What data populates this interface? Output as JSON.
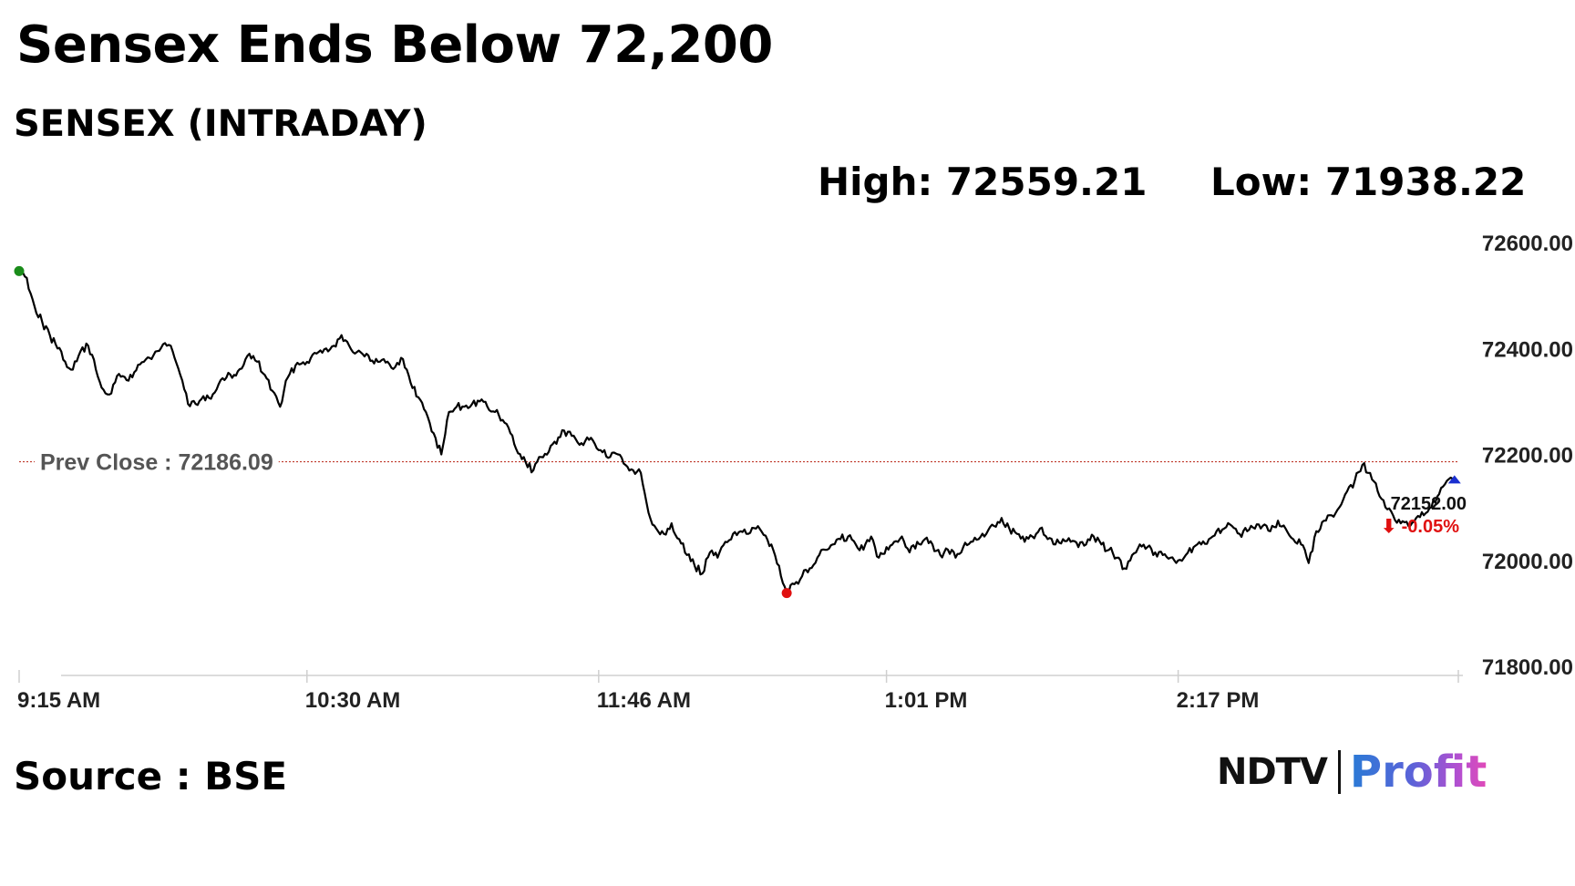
{
  "headline": "Sensex Ends Below 72,200",
  "stats": {
    "high": "High: 72559.21",
    "low": "Low: 71938.22"
  },
  "source": "Source : BSE",
  "logo": {
    "left_text": "NDTV",
    "right_text": "Profit"
  },
  "colors": {
    "line": "#000000",
    "prev_close_line": "#c0392b",
    "open_marker": "#1a8c1a",
    "low_marker": "#e01010",
    "last_marker": "#1a2fd0",
    "change_negative": "#e01010"
  },
  "chart_data": {
    "type": "line",
    "title": "SENSEX (INTRADAY)",
    "x_range": [
      "9:15 AM",
      "3:30 PM"
    ],
    "ylim": [
      71800,
      72600
    ],
    "grid": false,
    "y_ticks": [
      {
        "value": 72600,
        "label": "72600.00"
      },
      {
        "value": 72400,
        "label": "72400.00"
      },
      {
        "value": 72200,
        "label": "72200.00"
      },
      {
        "value": 72000,
        "label": "72000.00"
      },
      {
        "value": 71800,
        "label": "71800.00"
      }
    ],
    "x_ticks": [
      {
        "time": "9:15",
        "label": "9:15 AM"
      },
      {
        "time": "10:30",
        "label": "10:30 AM"
      },
      {
        "time": "11:46",
        "label": "11:46 AM"
      },
      {
        "time": "13:01",
        "label": "1:01 PM"
      },
      {
        "time": "14:17",
        "label": "2:17 PM"
      }
    ],
    "prev_close": {
      "value": 72186.09,
      "label": "Prev Close : 72186.09"
    },
    "high": 72559.21,
    "low": 71938.22,
    "last": {
      "value": 72152.0,
      "label": "72152.00",
      "change_label": "⬇ -0.05%"
    },
    "series": [
      {
        "points": [
          [
            "9:15",
            72546
          ],
          [
            "9:17",
            72533
          ],
          [
            "9:19",
            72480
          ],
          [
            "9:21",
            72450
          ],
          [
            "9:23",
            72425
          ],
          [
            "9:25",
            72400
          ],
          [
            "9:27",
            72375
          ],
          [
            "9:29",
            72360
          ],
          [
            "9:31",
            72395
          ],
          [
            "9:33",
            72405
          ],
          [
            "9:35",
            72360
          ],
          [
            "9:37",
            72322
          ],
          [
            "9:39",
            72315
          ],
          [
            "9:41",
            72352
          ],
          [
            "9:43",
            72340
          ],
          [
            "9:45",
            72355
          ],
          [
            "9:47",
            72374
          ],
          [
            "9:49",
            72382
          ],
          [
            "9:51",
            72395
          ],
          [
            "9:53",
            72410
          ],
          [
            "9:55",
            72395
          ],
          [
            "9:57",
            72350
          ],
          [
            "9:59",
            72295
          ],
          [
            "10:01",
            72295
          ],
          [
            "10:03",
            72310
          ],
          [
            "10:05",
            72305
          ],
          [
            "10:07",
            72333
          ],
          [
            "10:09",
            72345
          ],
          [
            "10:11",
            72350
          ],
          [
            "10:13",
            72362
          ],
          [
            "10:15",
            72390
          ],
          [
            "10:17",
            72375
          ],
          [
            "10:19",
            72350
          ],
          [
            "10:21",
            72320
          ],
          [
            "10:23",
            72290
          ],
          [
            "10:25",
            72345
          ],
          [
            "10:27",
            72368
          ],
          [
            "10:29",
            72374
          ],
          [
            "10:31",
            72382
          ],
          [
            "10:33",
            72393
          ],
          [
            "10:35",
            72400
          ],
          [
            "10:37",
            72405
          ],
          [
            "10:39",
            72425
          ],
          [
            "10:41",
            72405
          ],
          [
            "10:43",
            72393
          ],
          [
            "10:45",
            72385
          ],
          [
            "10:47",
            72377
          ],
          [
            "10:49",
            72375
          ],
          [
            "10:51",
            72375
          ],
          [
            "10:53",
            72365
          ],
          [
            "10:55",
            72380
          ],
          [
            "10:57",
            72335
          ],
          [
            "10:59",
            72308
          ],
          [
            "11:01",
            72280
          ],
          [
            "11:03",
            72240
          ],
          [
            "11:05",
            72200
          ],
          [
            "11:07",
            72280
          ],
          [
            "11:09",
            72290
          ],
          [
            "11:11",
            72290
          ],
          [
            "11:13",
            72295
          ],
          [
            "11:15",
            72300
          ],
          [
            "11:17",
            72290
          ],
          [
            "11:19",
            72280
          ],
          [
            "11:21",
            72265
          ],
          [
            "11:23",
            72240
          ],
          [
            "11:25",
            72202
          ],
          [
            "11:27",
            72185
          ],
          [
            "11:29",
            72170
          ],
          [
            "11:31",
            72195
          ],
          [
            "11:33",
            72205
          ],
          [
            "11:35",
            72220
          ],
          [
            "11:37",
            72245
          ],
          [
            "11:39",
            72235
          ],
          [
            "11:41",
            72218
          ],
          [
            "11:43",
            72232
          ],
          [
            "11:45",
            72220
          ],
          [
            "11:47",
            72204
          ],
          [
            "11:49",
            72195
          ],
          [
            "11:51",
            72200
          ],
          [
            "11:53",
            72180
          ],
          [
            "11:55",
            72170
          ],
          [
            "11:57",
            72165
          ],
          [
            "11:59",
            72090
          ],
          [
            "12:01",
            72060
          ],
          [
            "12:03",
            72050
          ],
          [
            "12:05",
            72070
          ],
          [
            "12:07",
            72040
          ],
          [
            "12:09",
            72010
          ],
          [
            "12:11",
            71990
          ],
          [
            "12:13",
            71975
          ],
          [
            "12:15",
            72015
          ],
          [
            "12:17",
            72005
          ],
          [
            "12:19",
            72035
          ],
          [
            "12:21",
            72050
          ],
          [
            "12:23",
            72055
          ],
          [
            "12:25",
            72050
          ],
          [
            "12:27",
            72060
          ],
          [
            "12:29",
            72048
          ],
          [
            "12:31",
            72030
          ],
          [
            "12:33",
            71990
          ],
          [
            "12:35",
            71938
          ],
          [
            "12:37",
            71955
          ],
          [
            "12:39",
            71970
          ],
          [
            "12:41",
            71985
          ],
          [
            "12:43",
            72005
          ],
          [
            "12:45",
            72020
          ],
          [
            "12:47",
            72030
          ],
          [
            "12:49",
            72040
          ],
          [
            "12:51",
            72045
          ],
          [
            "12:53",
            72030
          ],
          [
            "12:55",
            72020
          ],
          [
            "12:57",
            72045
          ],
          [
            "12:59",
            72005
          ],
          [
            "13:01",
            72025
          ],
          [
            "13:03",
            72035
          ],
          [
            "13:05",
            72045
          ],
          [
            "13:07",
            72015
          ],
          [
            "13:09",
            72035
          ],
          [
            "13:11",
            72040
          ],
          [
            "13:13",
            72030
          ],
          [
            "13:15",
            72010
          ],
          [
            "13:17",
            72020
          ],
          [
            "13:19",
            72005
          ],
          [
            "13:21",
            72025
          ],
          [
            "13:23",
            72035
          ],
          [
            "13:25",
            72040
          ],
          [
            "13:27",
            72050
          ],
          [
            "13:29",
            72065
          ],
          [
            "13:31",
            72080
          ],
          [
            "13:33",
            72060
          ],
          [
            "13:35",
            72050
          ],
          [
            "13:37",
            72035
          ],
          [
            "13:39",
            72045
          ],
          [
            "13:41",
            72060
          ],
          [
            "13:43",
            72040
          ],
          [
            "13:45",
            72030
          ],
          [
            "13:47",
            72040
          ],
          [
            "13:49",
            72035
          ],
          [
            "13:51",
            72025
          ],
          [
            "13:53",
            72030
          ],
          [
            "13:55",
            72045
          ],
          [
            "13:57",
            72030
          ],
          [
            "13:59",
            72020
          ],
          [
            "14:01",
            72005
          ],
          [
            "14:03",
            71985
          ],
          [
            "14:05",
            72010
          ],
          [
            "14:07",
            72030
          ],
          [
            "14:09",
            72025
          ],
          [
            "14:11",
            72015
          ],
          [
            "14:13",
            72010
          ],
          [
            "14:15",
            72005
          ],
          [
            "14:17",
            72000
          ],
          [
            "14:19",
            72010
          ],
          [
            "14:21",
            72025
          ],
          [
            "14:23",
            72030
          ],
          [
            "14:25",
            72040
          ],
          [
            "14:27",
            72055
          ],
          [
            "14:29",
            72060
          ],
          [
            "14:31",
            72065
          ],
          [
            "14:33",
            72050
          ],
          [
            "14:35",
            72055
          ],
          [
            "14:37",
            72060
          ],
          [
            "14:39",
            72065
          ],
          [
            "14:41",
            72055
          ],
          [
            "14:43",
            72075
          ],
          [
            "14:45",
            72060
          ],
          [
            "14:47",
            72040
          ],
          [
            "14:49",
            72030
          ],
          [
            "14:51",
            71995
          ],
          [
            "14:53",
            72055
          ],
          [
            "14:55",
            72075
          ],
          [
            "14:57",
            72085
          ],
          [
            "14:59",
            72100
          ],
          [
            "15:01",
            72130
          ],
          [
            "15:03",
            72150
          ],
          [
            "15:05",
            72180
          ],
          [
            "15:07",
            72165
          ],
          [
            "15:09",
            72130
          ],
          [
            "15:11",
            72100
          ],
          [
            "15:13",
            72085
          ],
          [
            "15:15",
            72070
          ],
          [
            "15:17",
            72065
          ],
          [
            "15:19",
            72080
          ],
          [
            "15:21",
            72085
          ],
          [
            "15:23",
            72100
          ],
          [
            "15:25",
            72125
          ],
          [
            "15:27",
            72150
          ],
          [
            "15:29",
            72152
          ]
        ]
      }
    ]
  }
}
